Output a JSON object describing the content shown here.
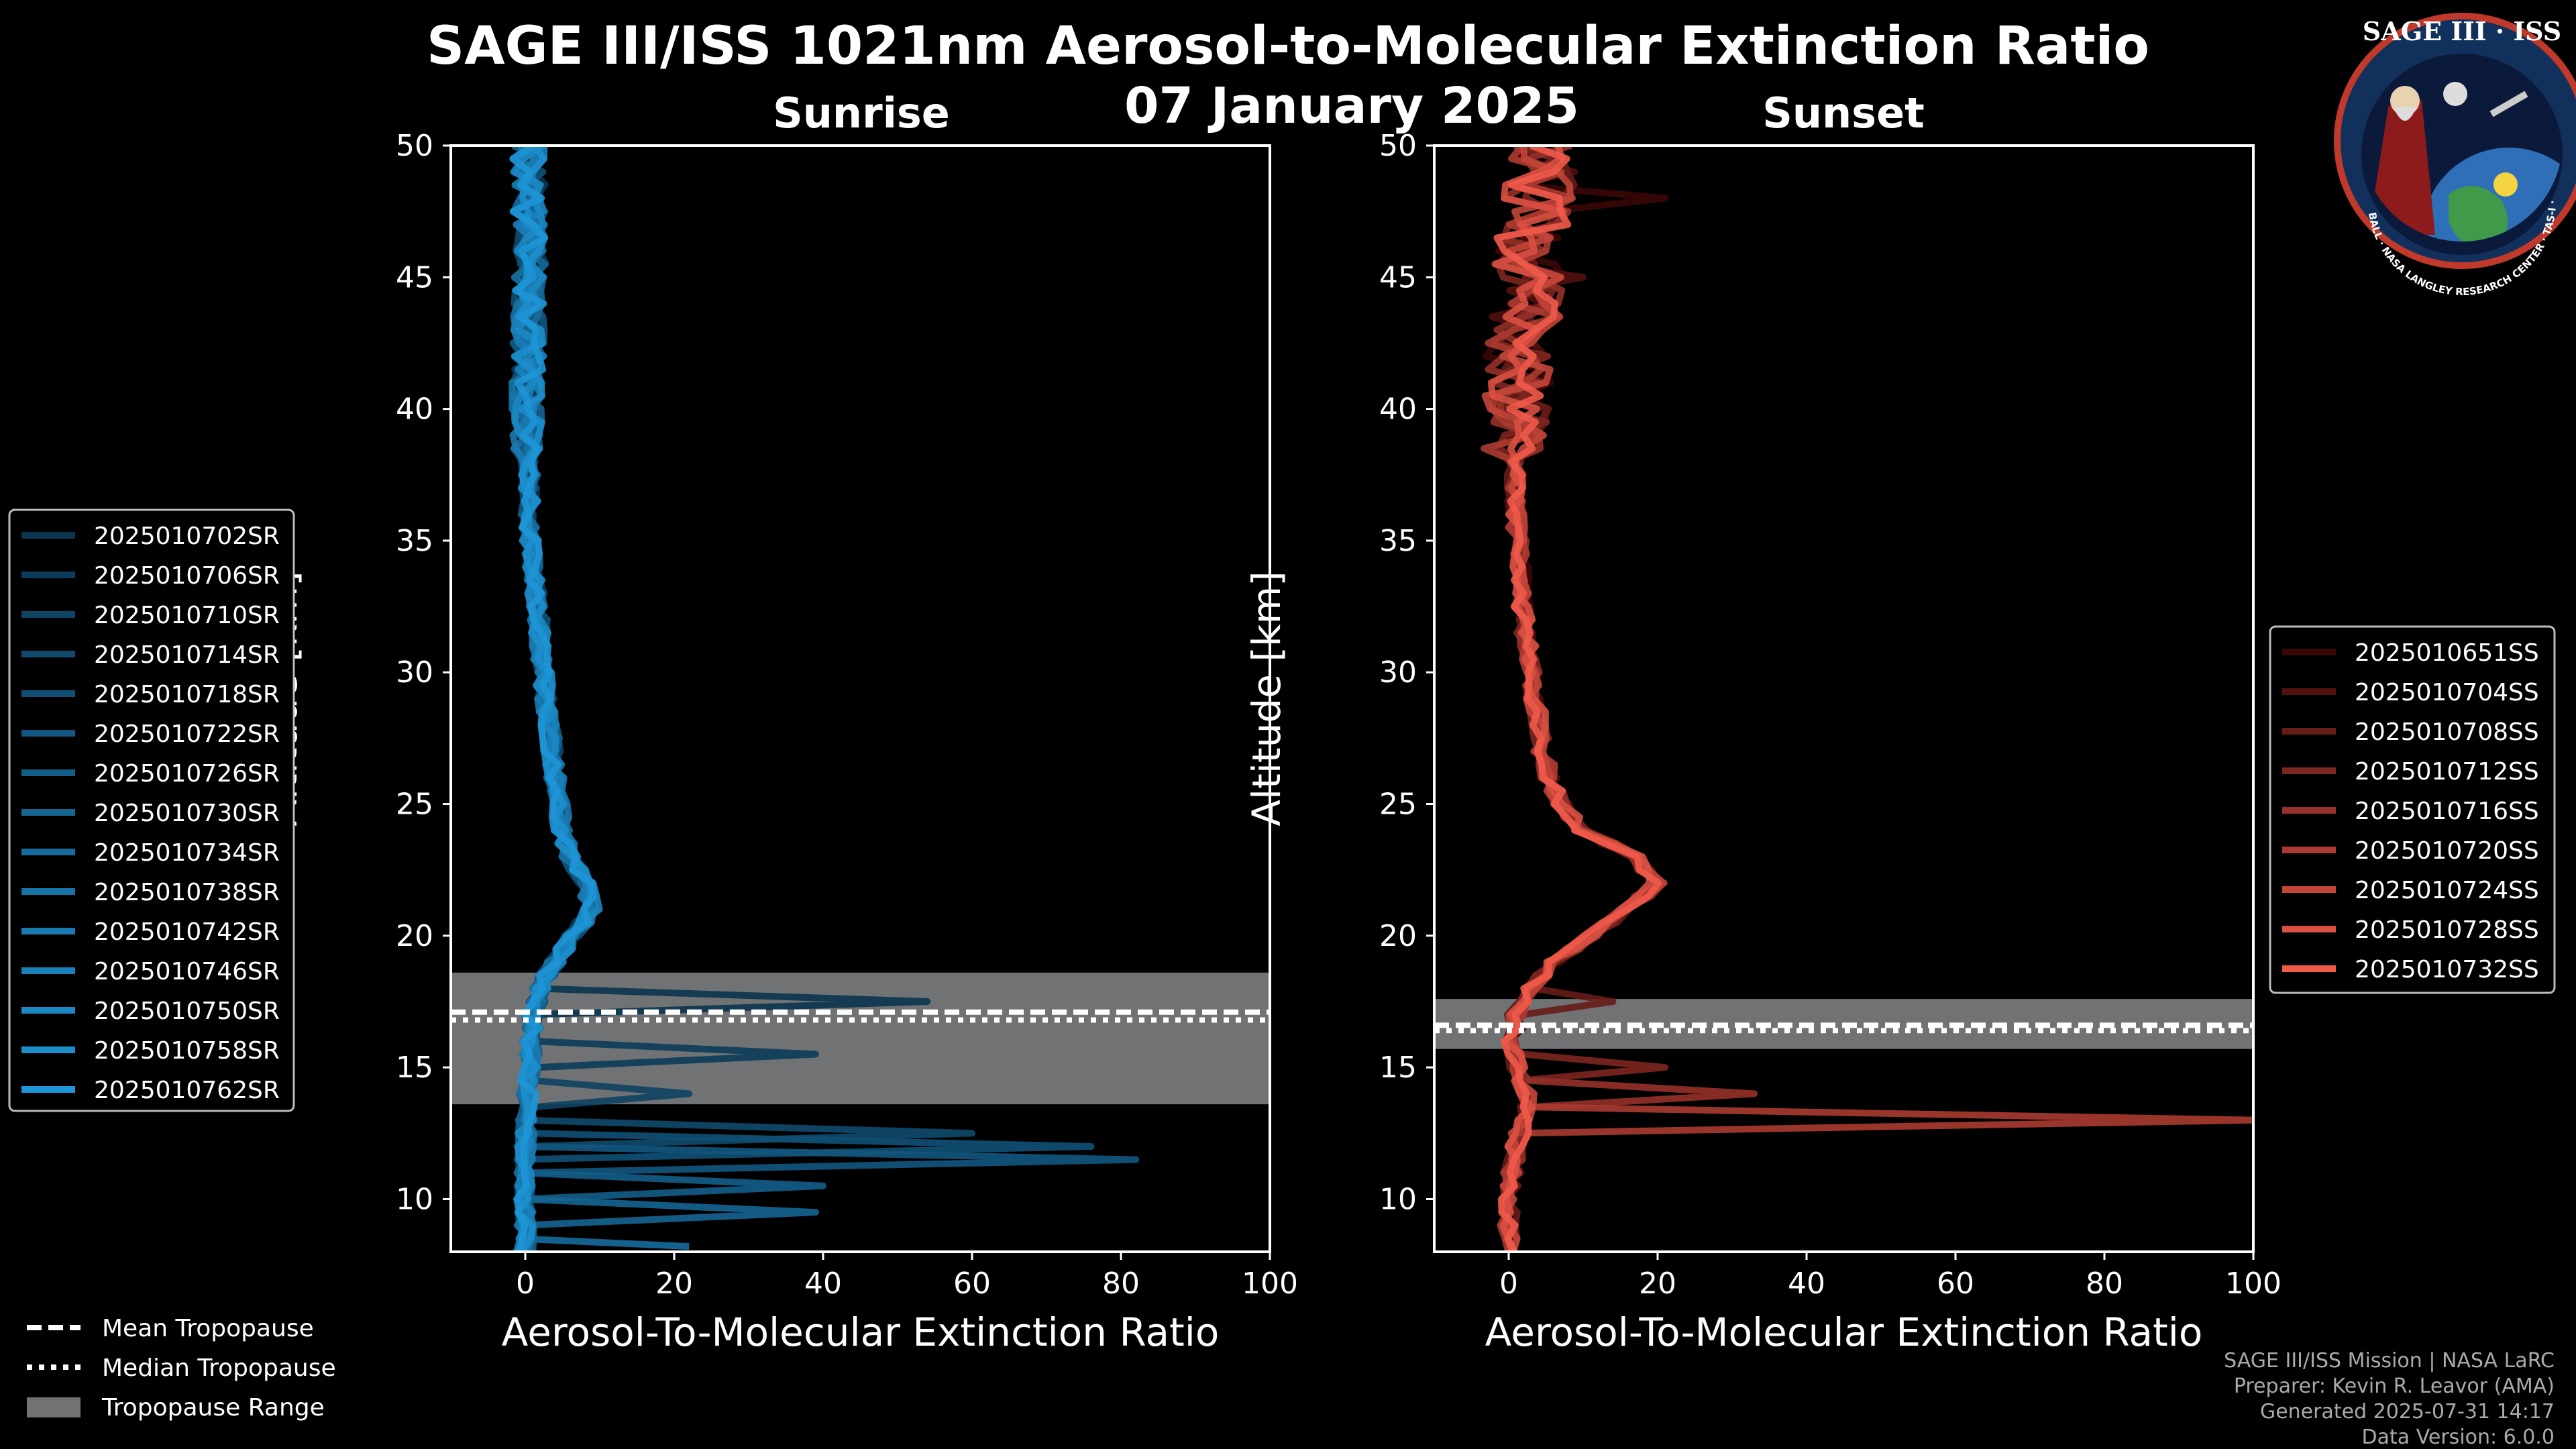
{
  "title": "SAGE III/ISS 1021nm Aerosol-to-Molecular Extinction Ratio",
  "subtitle": "07 January 2025",
  "badge": {
    "text": "SAGE III · ISS",
    "ring_text": "BALL · NASA LANGLEY RESEARCH CENTER · TAS-I · ESA"
  },
  "legend_sr": [
    "2025010702SR",
    "2025010706SR",
    "2025010710SR",
    "2025010714SR",
    "2025010718SR",
    "2025010722SR",
    "2025010726SR",
    "2025010730SR",
    "2025010734SR",
    "2025010738SR",
    "2025010742SR",
    "2025010746SR",
    "2025010750SR",
    "2025010758SR",
    "2025010762SR"
  ],
  "legend_ss": [
    "2025010651SS",
    "2025010704SS",
    "2025010708SS",
    "2025010712SS",
    "2025010716SS",
    "2025010720SS",
    "2025010724SS",
    "2025010728SS",
    "2025010732SS"
  ],
  "legend_trop": [
    "Mean Tropopause",
    "Median Tropopause",
    "Tropopause Range"
  ],
  "footer": [
    "SAGE III/ISS Mission | NASA LaRC",
    "Preparer: Kevin R. Leavor (AMA)",
    "Generated 2025-07-31 14:17",
    "Data Version: 6.0.0"
  ],
  "colors": {
    "sr_dark": "#0b3550",
    "sr_light": "#1e95d6",
    "ss_dark": "#3a0707",
    "ss_light": "#ef5a4a",
    "trop_band": "#707274"
  },
  "chart_data": [
    {
      "type": "line",
      "title": "Sunrise",
      "xlabel": "Aerosol-To-Molecular Extinction Ratio",
      "ylabel": "Altitude [km]",
      "xlim": [
        -10,
        100
      ],
      "ylim": [
        8,
        50
      ],
      "xticks": [
        0,
        20,
        40,
        60,
        80,
        100
      ],
      "yticks": [
        10,
        15,
        20,
        25,
        30,
        35,
        40,
        45,
        50
      ],
      "tropopause": {
        "mean": 17.1,
        "median": 16.8,
        "range": [
          13.6,
          18.6
        ]
      },
      "mean_profile": {
        "altitude": [
          8,
          9,
          10,
          11,
          12,
          13,
          14,
          15,
          16,
          17,
          18,
          19,
          20,
          21,
          22,
          23,
          24,
          25,
          26,
          27,
          28,
          29,
          30,
          32,
          34,
          36,
          38,
          40,
          42,
          44,
          46,
          48,
          50
        ],
        "ratio": [
          0,
          0,
          0,
          0,
          0,
          0.2,
          0.4,
          0.6,
          0.8,
          1.0,
          2.0,
          4.0,
          6.5,
          9.0,
          8.0,
          6.0,
          5.0,
          4.5,
          4.0,
          3.6,
          3.2,
          2.8,
          2.4,
          1.8,
          1.0,
          0.6,
          0.5,
          0.4,
          0.4,
          0.6,
          0.6,
          0.5,
          0.5
        ]
      },
      "spikes": [
        {
          "altitude": 17.5,
          "value": 54
        },
        {
          "altitude": 15.5,
          "value": 39
        },
        {
          "altitude": 14.0,
          "value": 22
        },
        {
          "altitude": 12.5,
          "value": 60
        },
        {
          "altitude": 12.0,
          "value": 76
        },
        {
          "altitude": 11.5,
          "value": 82
        },
        {
          "altitude": 10.5,
          "value": 40
        },
        {
          "altitude": 9.5,
          "value": 39
        },
        {
          "altitude": 8.2,
          "value": 22
        }
      ],
      "series": [
        "2025010702SR",
        "2025010706SR",
        "2025010710SR",
        "2025010714SR",
        "2025010718SR",
        "2025010722SR",
        "2025010726SR",
        "2025010730SR",
        "2025010734SR",
        "2025010738SR",
        "2025010742SR",
        "2025010746SR",
        "2025010750SR",
        "2025010758SR",
        "2025010762SR"
      ]
    },
    {
      "type": "line",
      "title": "Sunset",
      "xlabel": "Aerosol-To-Molecular Extinction Ratio",
      "ylabel": "Altitude [km]",
      "xlim": [
        -10,
        100
      ],
      "ylim": [
        8,
        50
      ],
      "xticks": [
        0,
        20,
        40,
        60,
        80,
        100
      ],
      "yticks": [
        10,
        15,
        20,
        25,
        30,
        35,
        40,
        45,
        50
      ],
      "tropopause": {
        "mean": 16.6,
        "median": 16.4,
        "range": [
          15.7,
          17.6
        ]
      },
      "mean_profile": {
        "altitude": [
          8,
          9,
          10,
          11,
          12,
          13,
          14,
          15,
          16,
          17,
          18,
          19,
          20,
          21,
          22,
          23,
          24,
          25,
          26,
          27,
          28,
          29,
          30,
          32,
          34,
          36,
          38,
          40,
          42,
          44,
          46,
          48,
          50
        ],
        "ratio": [
          0,
          0,
          0,
          0.5,
          1.0,
          2.0,
          2.5,
          1.0,
          0.5,
          1.0,
          3.0,
          6.0,
          11.0,
          16.0,
          20.0,
          17.0,
          10.0,
          7.0,
          5.5,
          4.5,
          4.0,
          3.5,
          3.0,
          2.0,
          1.5,
          1.0,
          1.0,
          1.5,
          1.5,
          2.5,
          3.0,
          4.0,
          4.0
        ]
      },
      "spikes": [
        {
          "altitude": 48.0,
          "value": 21
        },
        {
          "altitude": 45.0,
          "value": 10
        },
        {
          "altitude": 17.5,
          "value": 14
        },
        {
          "altitude": 15.0,
          "value": 21
        },
        {
          "altitude": 14.0,
          "value": 33
        },
        {
          "altitude": 13.0,
          "value": 100
        }
      ],
      "series": [
        "2025010651SS",
        "2025010704SS",
        "2025010708SS",
        "2025010712SS",
        "2025010716SS",
        "2025010720SS",
        "2025010724SS",
        "2025010728SS",
        "2025010732SS"
      ]
    }
  ]
}
